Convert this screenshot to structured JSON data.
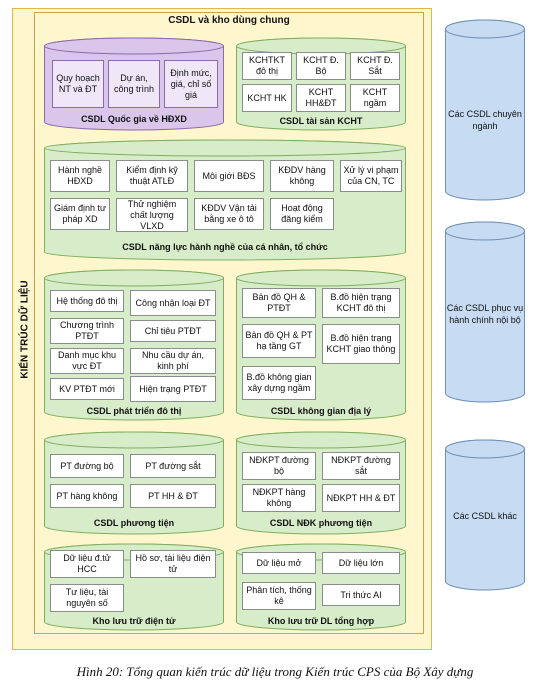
{
  "outer_label": "KIẾN TRÚC DỮ LIỆU",
  "inner_title": "CSDL và kho dùng chung",
  "colors": {
    "purple_fill": "#d9c6ea",
    "purple_stroke": "#8a6aa8",
    "green_fill": "#d7ecc8",
    "green_stroke": "#7fae5f",
    "blue_fill": "#c7dcf2",
    "blue_stroke": "#6e8fb5"
  },
  "cylinders": {
    "hdxd": {
      "title": "CSDL Quốc gia về HĐXD",
      "items": [
        "Quy hoạch NT và ĐT",
        "Dự án, công trình",
        "Định mức, giá, chỉ số giá"
      ]
    },
    "kcht": {
      "title": "CSDL tài sản KCHT",
      "items": [
        "KCHTKT đô thị",
        "KCHT Đ. Bộ",
        "KCHT Đ. Sắt",
        "KCHT HK",
        "KCHT HH&ĐT",
        "KCHT ngầm"
      ]
    },
    "nlhn": {
      "title": "CSDL năng lực hành nghề của cá nhân, tổ chức",
      "items": [
        "Hành nghề HĐXD",
        "Kiểm định kỹ thuật ATLĐ",
        "Môi giới BĐS",
        "KĐDV hàng không",
        "Xử lý vi phạm của CN, TC",
        "Giám định tư pháp XD",
        "Thử nghiệm chất lượng VLXD",
        "KĐDV Vận tải bằng xe ô tô",
        "Hoạt động đăng kiểm"
      ]
    },
    "ptdt": {
      "title": "CSDL phát triển đô thị",
      "items": [
        "Hệ thống đô thị",
        "Công nhận loại ĐT",
        "Chương trình PTĐT",
        "Chỉ tiêu PTĐT",
        "Danh mục khu vực ĐT",
        "Nhu cầu dự án, kinh phí",
        "KV PTĐT mới",
        "Hiện trạng PTĐT"
      ]
    },
    "kgdl": {
      "title": "CSDL không gian địa lý",
      "items": [
        "Bản đồ QH & PTĐT",
        "B.đồ hiện trạng KCHT đô thị",
        "Bản đồ QH & PT hạ tầng GT",
        "B.đồ hiện trạng KCHT giao thông",
        "B.đồ không gian xây dựng ngầm"
      ]
    },
    "ptien": {
      "title": "CSDL phương tiện",
      "items": [
        "PT đường bộ",
        "PT đường sắt",
        "PT hàng không",
        "PT HH & ĐT"
      ]
    },
    "ndk": {
      "title": "CSDL NĐK phương tiện",
      "items": [
        "NĐKPT đường bộ",
        "NĐKPT đường sắt",
        "NĐKPT hàng không",
        "NĐKPT HH & ĐT"
      ]
    },
    "kldt": {
      "title": "Kho lưu trữ điện tử",
      "items": [
        "Dữ liệu đ.tử HCC",
        "Hồ sơ, tài liệu điện tử",
        "Tư liệu, tài nguyên số"
      ]
    },
    "kth": {
      "title": "Kho lưu trữ DL tổng hợp",
      "items": [
        "Dữ liệu mở",
        "Dữ liệu lớn",
        "Phân tích, thống kê",
        "Tri thức AI"
      ]
    }
  },
  "side": [
    "Các CSDL chuyên ngành",
    "Các CSDL phục vụ hành chính nội bộ",
    "Các CSDL khác"
  ],
  "caption": "Hình 20: Tổng quan kiến trúc dữ liệu trong Kiến trúc CPS của Bộ Xây dựng"
}
